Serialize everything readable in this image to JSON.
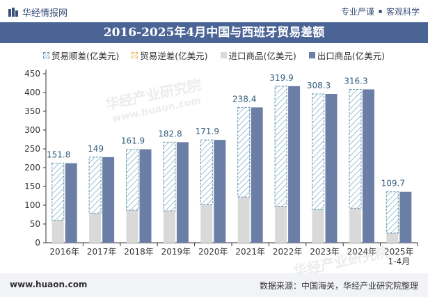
{
  "header": {
    "brand": "华经情报网",
    "tagline_left": "专业严谨",
    "tagline_right": "客观科学"
  },
  "watermarks": [
    "华经产业研究院",
    "www.huaon.com"
  ],
  "footer": {
    "website": "www.huaon.com",
    "source": "数据来源：中国海关，华经产业研究院整理"
  },
  "colors": {
    "title_bg": "#4a6496",
    "export": "#6b7fa6",
    "import": "#d9d9d9",
    "surplus_stroke": "#5a8fa8",
    "surplus_hatch": "#9cc3d3",
    "label": "#2f5d7c"
  },
  "chart_data": {
    "type": "bar",
    "title": "2016-2025年4月中国与西班牙贸易差额",
    "categories": [
      "2016年",
      "2017年",
      "2018年",
      "2019年",
      "2020年",
      "2021年",
      "2022年",
      "2023年",
      "2024年",
      "2025年 1-4月"
    ],
    "ylim": [
      0,
      450
    ],
    "yticks": [
      0,
      50,
      100,
      150,
      200,
      250,
      300,
      350,
      400,
      450
    ],
    "legend": [
      "贸易顺差(亿美元)",
      "贸易逆差(亿美元)",
      "进口商品(亿美元)",
      "出口商品(亿美元)"
    ],
    "series": [
      {
        "name": "贸易顺差(亿美元)",
        "values": [
          151.8,
          149,
          161.9,
          182.8,
          171.9,
          238.4,
          319.9,
          308.3,
          316.3,
          109.7
        ]
      },
      {
        "name": "贸易逆差(亿美元)",
        "values": [
          0,
          0,
          0,
          0,
          0,
          0,
          0,
          0,
          0,
          0
        ]
      },
      {
        "name": "进口商品(亿美元)",
        "values": [
          60,
          79,
          87,
          85,
          102,
          122,
          97,
          88,
          92,
          26
        ]
      },
      {
        "name": "出口商品(亿美元)",
        "values": [
          211.8,
          228,
          248.9,
          267.8,
          273.9,
          360.4,
          416.9,
          396.3,
          408.3,
          135.7
        ]
      }
    ]
  }
}
